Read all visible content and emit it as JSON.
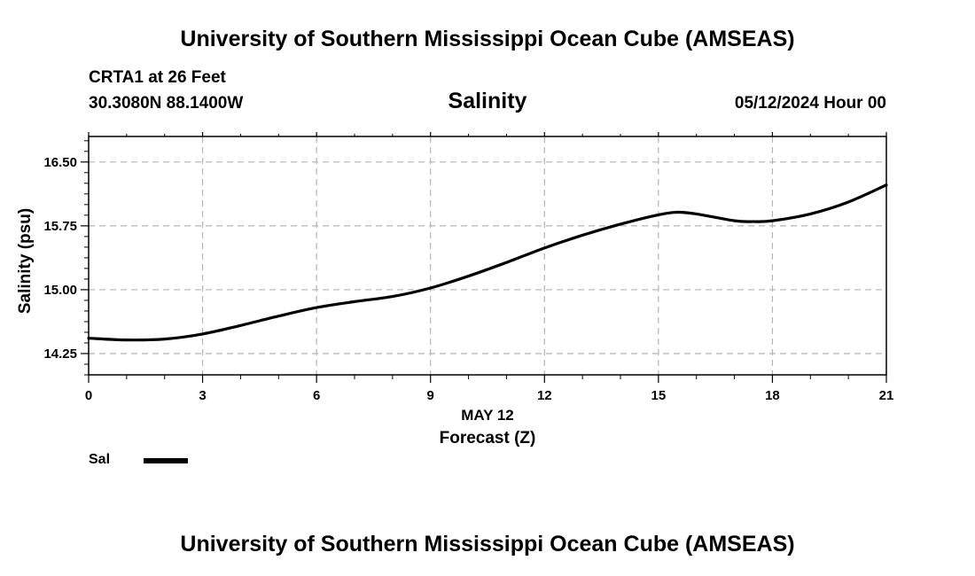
{
  "header": {
    "title": "University of Southern Mississippi Ocean Cube (AMSEAS)",
    "station": "CRTA1 at 26 Feet",
    "coords": "30.3080N  88.1400W",
    "datetime": "05/12/2024 Hour 00"
  },
  "footer": {
    "title": "University of Southern Mississippi Ocean Cube (AMSEAS)"
  },
  "legend": {
    "label": "Sal",
    "color": "#000000"
  },
  "chart_data": {
    "type": "line",
    "title": "Salinity",
    "xlabel": "Forecast (Z)",
    "xsublabel": "MAY 12",
    "ylabel": "Salinity (psu)",
    "xlim": [
      0,
      21
    ],
    "ylim": [
      14.0,
      16.8
    ],
    "xticks": [
      0,
      3,
      6,
      9,
      12,
      15,
      18,
      21
    ],
    "xtick_labels": [
      "0",
      "3",
      "6",
      "9",
      "12",
      "15",
      "18",
      "21"
    ],
    "yticks": [
      14.25,
      15.0,
      15.75,
      16.5
    ],
    "ytick_labels": [
      "14.25",
      "15.00",
      "15.75",
      "16.50"
    ],
    "grid": true,
    "series": [
      {
        "name": "Sal",
        "x": [
          0,
          1,
          2,
          3,
          4,
          5,
          6,
          7,
          8,
          9,
          10,
          11,
          12,
          13,
          14,
          15,
          15.5,
          16,
          17,
          17.5,
          18,
          19,
          20,
          21
        ],
        "values": [
          14.43,
          14.41,
          14.42,
          14.48,
          14.58,
          14.69,
          14.79,
          14.86,
          14.92,
          15.02,
          15.16,
          15.32,
          15.49,
          15.64,
          15.77,
          15.88,
          15.91,
          15.89,
          15.81,
          15.8,
          15.81,
          15.89,
          16.03,
          16.23
        ]
      }
    ]
  }
}
